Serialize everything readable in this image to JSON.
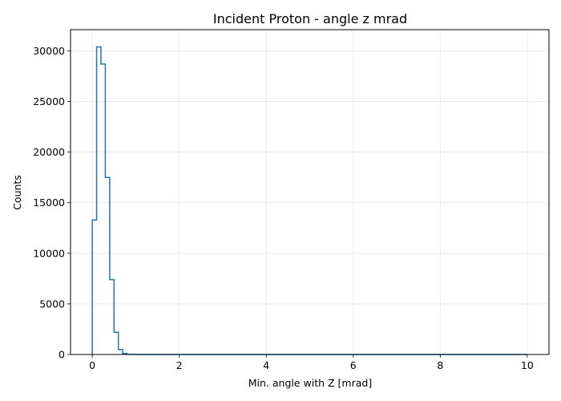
{
  "chart_data": {
    "type": "histogram-step",
    "title": "Incident Proton - angle z mrad",
    "xlabel": "Min. angle with Z [mrad]",
    "ylabel": "Counts",
    "xlim": [
      -0.5,
      10.5
    ],
    "ylim": [
      0,
      32100
    ],
    "xticks": [
      0,
      2,
      4,
      6,
      8,
      10
    ],
    "yticks": [
      0,
      5000,
      10000,
      15000,
      20000,
      25000,
      30000
    ],
    "grid": true,
    "line_color": "#1f77b4",
    "bin_width": 0.1,
    "bin_start": 0,
    "counts": [
      13300,
      30400,
      28700,
      17500,
      7400,
      2200,
      500,
      100,
      20,
      5
    ]
  }
}
